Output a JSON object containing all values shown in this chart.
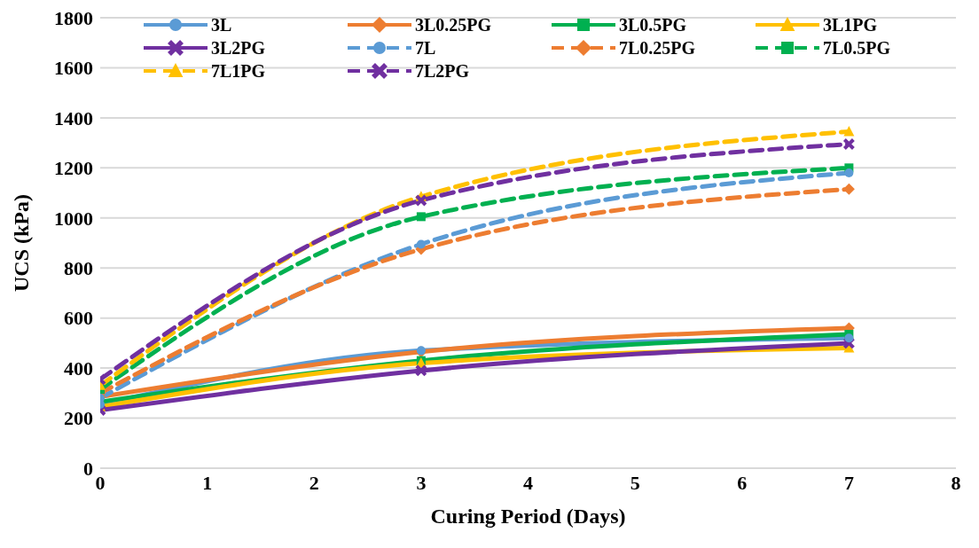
{
  "chart_data": {
    "type": "line",
    "xlabel": "Curing  Period (Days)",
    "ylabel": "UCS (kPa)",
    "x": [
      0,
      3,
      7
    ],
    "xlim": [
      0,
      8
    ],
    "xticks": [
      0,
      1,
      2,
      3,
      4,
      5,
      6,
      7,
      8
    ],
    "ylim": [
      0,
      1800
    ],
    "yticks": [
      0,
      200,
      400,
      600,
      800,
      1000,
      1200,
      1400,
      1600,
      1800
    ],
    "grid": "y",
    "legend": "top",
    "series": [
      {
        "name": "3L",
        "color": "#5b9bd5",
        "marker": "circle",
        "line_style": "solid",
        "values": [
          255,
          470,
          520
        ]
      },
      {
        "name": "3L0.25PG",
        "color": "#ed7d31",
        "marker": "diamond",
        "line_style": "solid",
        "values": [
          285,
          465,
          560
        ]
      },
      {
        "name": "3L0.5PG",
        "color": "#00b050",
        "marker": "square",
        "line_style": "solid",
        "values": [
          265,
          430,
          535
        ]
      },
      {
        "name": "3L1PG",
        "color": "#ffc000",
        "marker": "triangle",
        "line_style": "solid",
        "values": [
          245,
          420,
          480
        ]
      },
      {
        "name": "3L2PG",
        "color": "#7030a0",
        "marker": "cross",
        "line_style": "solid",
        "values": [
          232,
          390,
          500
        ]
      },
      {
        "name": "7L",
        "color": "#5b9bd5",
        "marker": "circle",
        "line_style": "dashed",
        "values": [
          280,
          895,
          1180
        ]
      },
      {
        "name": "7L0.25PG",
        "color": "#ed7d31",
        "marker": "diamond",
        "line_style": "dashed",
        "values": [
          300,
          875,
          1115
        ]
      },
      {
        "name": "7L0.5PG",
        "color": "#00b050",
        "marker": "square",
        "line_style": "dashed",
        "values": [
          315,
          1005,
          1200
        ]
      },
      {
        "name": "7L1PG",
        "color": "#ffc000",
        "marker": "triangle",
        "line_style": "dashed",
        "values": [
          330,
          1085,
          1345
        ]
      },
      {
        "name": "7L2PG",
        "color": "#7030a0",
        "marker": "cross",
        "line_style": "dashed",
        "values": [
          355,
          1070,
          1295
        ]
      }
    ]
  }
}
